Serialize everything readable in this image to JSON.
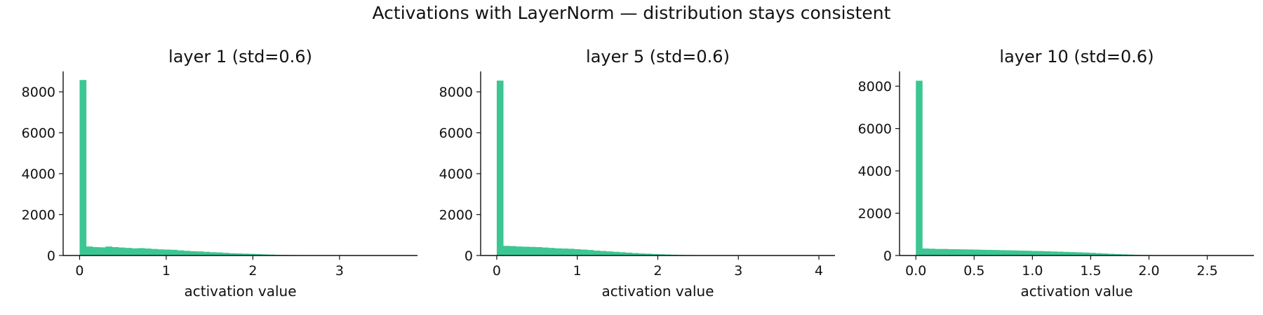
{
  "suptitle": "Activations with LayerNorm — distribution stays consistent",
  "bar_color": "#3cc693",
  "chart_data": [
    {
      "type": "bar",
      "title": "layer 1  (std=0.6)",
      "xlabel": "activation value",
      "ylabel": "",
      "xlim": [
        -0.19,
        3.9
      ],
      "ylim": [
        0,
        9000
      ],
      "xticks": [
        0,
        1,
        2,
        3
      ],
      "xtick_labels": [
        "0",
        "1",
        "2",
        "3"
      ],
      "yticks": [
        0,
        2000,
        4000,
        6000,
        8000
      ],
      "ytick_labels": [
        "0",
        "2000",
        "4000",
        "6000",
        "8000"
      ],
      "bin_start": 0,
      "bin_width": 0.075,
      "values": [
        8580,
        440,
        410,
        400,
        440,
        410,
        390,
        370,
        350,
        360,
        340,
        320,
        300,
        290,
        280,
        250,
        230,
        210,
        200,
        180,
        160,
        150,
        130,
        110,
        100,
        90,
        80,
        70,
        55,
        45,
        35,
        30,
        25,
        20,
        16,
        12,
        10,
        8,
        6,
        5,
        4,
        3,
        2,
        2,
        1,
        1,
        1,
        1,
        0,
        1
      ]
    },
    {
      "type": "bar",
      "title": "layer 5  (std=0.6)",
      "xlabel": "activation value",
      "ylabel": "",
      "xlim": [
        -0.2,
        4.2
      ],
      "ylim": [
        0,
        9000
      ],
      "xticks": [
        0,
        1,
        2,
        3,
        4
      ],
      "xtick_labels": [
        "0",
        "1",
        "2",
        "3",
        "4"
      ],
      "yticks": [
        0,
        2000,
        4000,
        6000,
        8000
      ],
      "ytick_labels": [
        "0",
        "2000",
        "4000",
        "6000",
        "8000"
      ],
      "bin_start": 0,
      "bin_width": 0.08,
      "values": [
        8550,
        470,
        460,
        440,
        430,
        420,
        410,
        390,
        370,
        350,
        340,
        330,
        310,
        290,
        270,
        240,
        220,
        200,
        180,
        160,
        140,
        120,
        100,
        90,
        75,
        60,
        50,
        40,
        32,
        25,
        20,
        15,
        12,
        10,
        8,
        6,
        5,
        4,
        3,
        2,
        2,
        1,
        1,
        1,
        1,
        0,
        0,
        1,
        0,
        1
      ]
    },
    {
      "type": "bar",
      "title": "layer 10  (std=0.6)",
      "xlabel": "activation value",
      "ylabel": "",
      "xlim": [
        -0.14,
        2.9
      ],
      "ylim": [
        0,
        8700
      ],
      "xticks": [
        0,
        0.5,
        1,
        1.5,
        2,
        2.5
      ],
      "xtick_labels": [
        "0.0",
        "0.5",
        "1.0",
        "1.5",
        "2.0",
        "2.5"
      ],
      "yticks": [
        0,
        2000,
        4000,
        6000,
        8000
      ],
      "ytick_labels": [
        "0",
        "2000",
        "4000",
        "6000",
        "8000"
      ],
      "bin_start": 0,
      "bin_width": 0.055,
      "values": [
        8260,
        330,
        320,
        310,
        310,
        300,
        295,
        290,
        285,
        280,
        270,
        265,
        260,
        250,
        245,
        240,
        230,
        225,
        215,
        210,
        200,
        190,
        180,
        170,
        160,
        150,
        140,
        125,
        110,
        95,
        80,
        65,
        55,
        45,
        35,
        28,
        22,
        17,
        13,
        10,
        7,
        5,
        4,
        3,
        2,
        2,
        1,
        1,
        1,
        1
      ]
    }
  ]
}
